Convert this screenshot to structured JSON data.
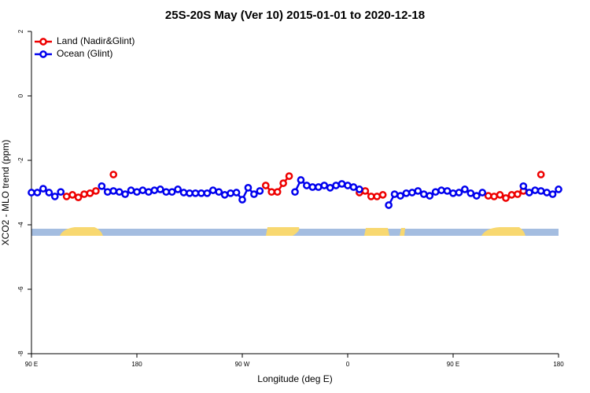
{
  "chart_data": {
    "type": "line",
    "title": "25S-20S May (Ver 10)   2015-01-01 to 2020-12-18",
    "x_label": "Longitude (deg E)",
    "y_label": "XCO2 - MLO trend (ppm)",
    "x": [
      90,
      95,
      100,
      105,
      110,
      115,
      120,
      125,
      130,
      135,
      140,
      145,
      150,
      155,
      160,
      165,
      170,
      175,
      180,
      185,
      190,
      195,
      200,
      205,
      210,
      215,
      220,
      225,
      230,
      235,
      240,
      245,
      250,
      255,
      260,
      265,
      270,
      275,
      280,
      285,
      290,
      295,
      300,
      305,
      310,
      315,
      320,
      325,
      330,
      335,
      340,
      345,
      350,
      355,
      360,
      365,
      370,
      375,
      380,
      385,
      390,
      395,
      400,
      405,
      410,
      415,
      420,
      425,
      430,
      435,
      440,
      445,
      450,
      455,
      460,
      465,
      470,
      475,
      480,
      485,
      490,
      495,
      500,
      505,
      510,
      515,
      520,
      525,
      530,
      535,
      540
    ],
    "series": [
      {
        "name": "Land (Nadir&Glint)",
        "color": "#ee0000",
        "values": [
          null,
          null,
          null,
          null,
          null,
          null,
          -3.12,
          -3.07,
          -3.15,
          -3.05,
          -3.02,
          -2.95,
          null,
          null,
          -2.44,
          null,
          null,
          null,
          null,
          null,
          null,
          null,
          null,
          null,
          null,
          null,
          null,
          null,
          null,
          null,
          null,
          null,
          null,
          null,
          null,
          null,
          null,
          null,
          null,
          null,
          -2.78,
          -2.98,
          -2.98,
          -2.71,
          -2.49,
          null,
          null,
          null,
          null,
          null,
          null,
          null,
          null,
          null,
          null,
          null,
          -3.0,
          -2.95,
          -3.12,
          -3.12,
          -3.07,
          null,
          null,
          null,
          null,
          null,
          null,
          null,
          null,
          null,
          null,
          null,
          null,
          null,
          null,
          null,
          null,
          null,
          -3.1,
          -3.12,
          -3.07,
          -3.17,
          -3.07,
          -3.05,
          -2.95,
          null,
          null,
          -2.44,
          null,
          null,
          null
        ]
      },
      {
        "name": "Ocean (Glint)",
        "color": "#0000ee",
        "values": [
          -3.0,
          -3.0,
          -2.88,
          -3.0,
          -3.12,
          -2.98,
          null,
          null,
          null,
          null,
          null,
          null,
          -2.8,
          -2.98,
          -2.95,
          -2.98,
          -3.05,
          -2.93,
          -2.98,
          -2.93,
          -2.98,
          -2.93,
          -2.9,
          -2.98,
          -2.98,
          -2.9,
          -3.0,
          -3.02,
          -3.02,
          -3.02,
          -3.02,
          -2.93,
          -2.98,
          -3.07,
          -3.02,
          -3.0,
          -3.22,
          -2.85,
          -3.05,
          -2.95,
          null,
          null,
          null,
          null,
          null,
          -2.98,
          -2.61,
          -2.78,
          -2.83,
          -2.83,
          -2.78,
          -2.85,
          -2.78,
          -2.73,
          -2.78,
          -2.83,
          -2.9,
          null,
          null,
          null,
          null,
          -3.39,
          -3.05,
          -3.1,
          -3.02,
          -3.0,
          -2.95,
          -3.05,
          -3.1,
          -2.98,
          -2.93,
          -2.95,
          -3.02,
          -3.0,
          -2.9,
          -3.02,
          -3.1,
          -3.0,
          null,
          null,
          null,
          null,
          null,
          null,
          -2.8,
          -3.0,
          -2.93,
          -2.95,
          -3.0,
          -3.05,
          -2.9
        ]
      }
    ],
    "xlim": [
      90,
      540
    ],
    "xticks": [
      {
        "value": 90,
        "label": "90 E"
      },
      180,
      {
        "value": 270,
        "label": "90 W"
      },
      {
        "value": 360,
        "label": "0"
      },
      {
        "value": 450,
        "label": "90 E"
      },
      {
        "value": 540,
        "label": "180"
      }
    ],
    "ylim": [
      -8,
      2
    ],
    "yticks": [
      -8,
      -6,
      -4,
      -2,
      0,
      2
    ],
    "legend": "top-left"
  }
}
